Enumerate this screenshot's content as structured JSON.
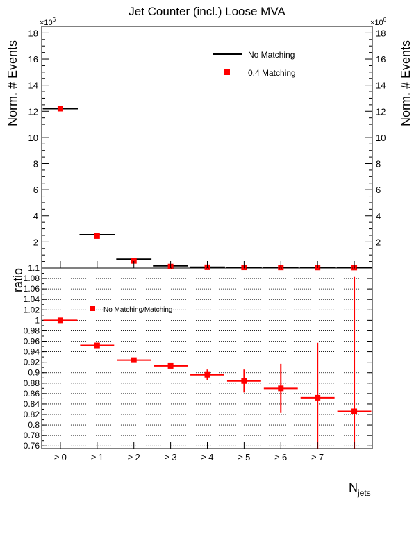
{
  "chart_data": [
    {
      "type": "step-with-markers",
      "title": "Jet Counter (incl.) Loose MVA",
      "ylabel": "Norm. # Events",
      "exponent_label": "×10^6",
      "exponent_base": "×10",
      "exponent_power": "6",
      "ylim": [
        0,
        18.5
      ],
      "yticks": [
        2,
        4,
        6,
        8,
        10,
        12,
        14,
        16,
        18
      ],
      "bins": 9,
      "series": [
        {
          "name": "No Matching",
          "style": "line",
          "color": "#000000",
          "values": [
            12.2,
            2.55,
            0.68,
            0.17,
            0.065,
            0.055,
            0.05,
            0.045,
            0.04
          ]
        },
        {
          "name": "0.4 Matching",
          "style": "marker",
          "color": "#ff0000",
          "values": [
            12.2,
            2.45,
            0.55,
            0.12,
            0.06,
            0.05,
            0.045,
            0.04,
            0.035
          ]
        }
      ],
      "legend": [
        "No Matching",
        "0.4 Matching"
      ],
      "legend_position": "top-right"
    },
    {
      "type": "ratio",
      "ylabel": "ratio",
      "ylim": [
        0.755,
        1.1
      ],
      "ytick_labels": [
        "1.1",
        "1.08",
        "1.06",
        "1.04",
        "1.02",
        "1",
        "0.98",
        "0.96",
        "0.94",
        "0.92",
        "0.9",
        "0.88",
        "0.86",
        "0.84",
        "0.82",
        "0.8",
        "0.78",
        "0.76"
      ],
      "grid": true,
      "series": [
        {
          "name": "No Matching/Matching",
          "color": "#ff0000",
          "values": [
            1.0,
            0.952,
            0.924,
            0.913,
            0.896,
            0.884,
            0.87,
            0.852,
            0.826
          ],
          "errors": [
            0.0,
            0.0,
            0.0,
            0.0,
            0.01,
            0.022,
            0.047,
            0.105,
            0.257
          ]
        }
      ],
      "legend": [
        "No Matching/Matching"
      ],
      "legend_position": "top-left",
      "categories": [
        "≥ 0",
        "≥ 1",
        "≥ 2",
        "≥ 3",
        "≥ 4",
        "≥ 5",
        "≥ 6",
        "≥ 7",
        ""
      ],
      "xlabel": "N",
      "xlabel_sub": "jets"
    }
  ]
}
